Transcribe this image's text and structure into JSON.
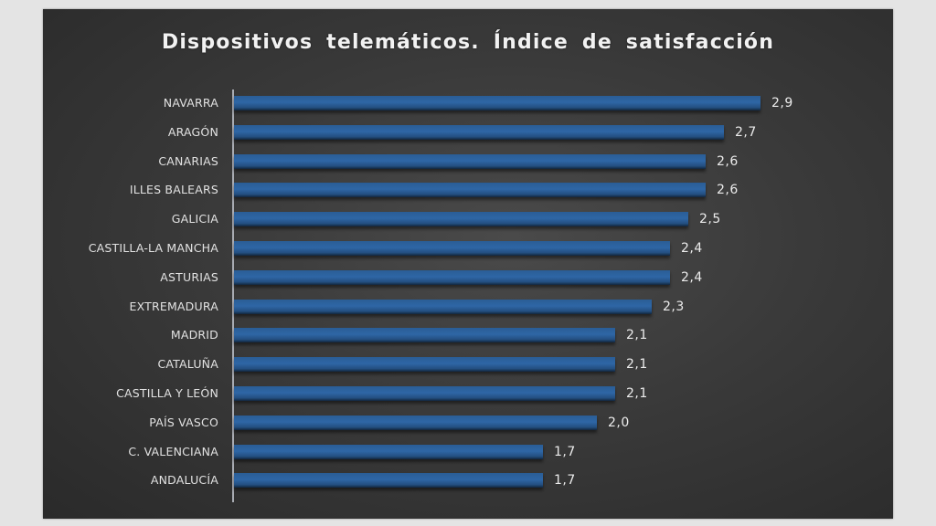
{
  "chart_data": {
    "type": "bar",
    "orientation": "horizontal",
    "title": "Dispositivos  telemáticos. Índice de satisfacción",
    "xlabel": "",
    "ylabel": "",
    "categories": [
      "NAVARRA",
      "ARAGÓN",
      "CANARIAS",
      "ILLES BALEARS",
      "GALICIA",
      "CASTILLA-LA MANCHA",
      "ASTURIAS",
      "EXTREMADURA",
      "MADRID",
      "CATALUÑA",
      "CASTILLA Y LEÓN",
      "PAÍS VASCO",
      "C. VALENCIANA",
      "ANDALUCÍA"
    ],
    "values": [
      2.9,
      2.7,
      2.6,
      2.6,
      2.5,
      2.4,
      2.4,
      2.3,
      2.1,
      2.1,
      2.1,
      2.0,
      1.7,
      1.7
    ],
    "value_labels": [
      "2,9",
      "2,7",
      "2,6",
      "2,6",
      "2,5",
      "2,4",
      "2,4",
      "2,3",
      "2,1",
      "2,1",
      "2,1",
      "2,0",
      "1,7",
      "1,7"
    ],
    "xlim": [
      0,
      2.9
    ],
    "grid": false,
    "legend": "none",
    "data_labels": true,
    "colors": {
      "bar": "#2e66a5",
      "background": "#3a3a3a",
      "text": "#e2e2e2",
      "axis": "#a9acb3"
    }
  }
}
